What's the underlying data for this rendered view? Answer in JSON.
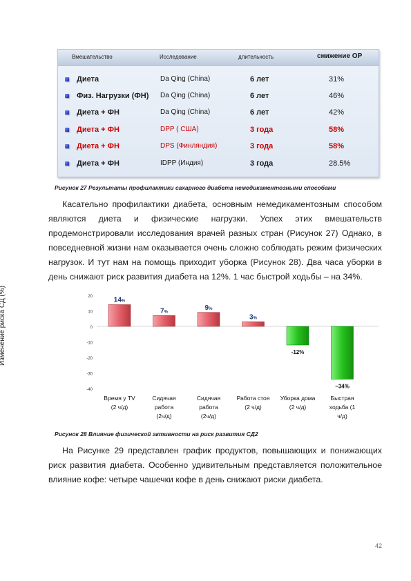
{
  "table": {
    "headers": [
      "Вмешательство",
      "Исследование",
      "длительность",
      "снижение ОР"
    ],
    "rows": [
      {
        "intervention": "Диета",
        "study": "Da Qing (China)",
        "duration": "6 лет",
        "reduction": "31%",
        "highlight": false
      },
      {
        "intervention": "Физ. Нагрузки (ФН)",
        "study": "Da Qing (China)",
        "duration": "6 лет",
        "reduction": "46%",
        "highlight": false
      },
      {
        "intervention": "Диета  + ФН",
        "study": "Da Qing (China)",
        "duration": "6 лет",
        "reduction": "42%",
        "highlight": false
      },
      {
        "intervention": "Диета  + ФН",
        "study": "DPP ( США)",
        "duration": "3 года",
        "reduction": "58%",
        "highlight": true
      },
      {
        "intervention": "Диета  + ФН",
        "study": "DPS  (Финляндия)",
        "duration": "3 года",
        "reduction": "58%",
        "highlight": true
      },
      {
        "intervention": "Диета  + ФН",
        "study": "IDPP (Индия)",
        "duration": "3 года",
        "reduction": "28.5%",
        "highlight": false
      }
    ],
    "colors": {
      "highlight": "#cc0000",
      "bullet": "#1c26a8"
    }
  },
  "caption27": "Рисунок 27 Результаты профилактики сахарного диабета немедикаментозными способами",
  "paragraph1": "Касательно профилактики диабета, основным немедикаментозным способом являются диета и физические нагрузки. Успех этих вмешательств продемонстрировали исследования врачей разных стран (Рисунок 27) Однако, в повседневной жизни нам оказывается очень сложно соблюдать режим физических нагрузок. И тут нам на помощь приходит уборка (Рисунок 28). Два часа уборки в день снижают риск развития диабета на 12%. 1 час быстрой ходьбы – на 34%.",
  "chart_data": {
    "type": "bar",
    "ylabel": "Изменение риска СД (%)",
    "ylim": [
      -40,
      20
    ],
    "yticks": [
      20,
      10,
      0,
      -10,
      -20,
      -30,
      -40
    ],
    "grid": false,
    "categories": [
      [
        "Время у TV",
        "(2 ч/д)"
      ],
      [
        "Сидячая",
        "работа",
        "(2ч/д)"
      ],
      [
        "Сидячая",
        "работа",
        "(2ч/д)"
      ],
      [
        "Работа стоя",
        "(2 ч/д)"
      ],
      [
        "Уборка дома",
        "(2 ч/д)"
      ],
      [
        "Быстрая",
        "ходьба (1",
        "ч/д)"
      ]
    ],
    "values": [
      14,
      7,
      9,
      3,
      -12,
      -34
    ],
    "data_labels": [
      {
        "num": "14",
        "unit": "%"
      },
      {
        "num": "7",
        "unit": "%"
      },
      {
        "num": "9",
        "unit": "%"
      },
      {
        "num": "3",
        "unit": "%"
      },
      {
        "num": "-12%",
        "unit": ""
      },
      {
        "num": "−34%",
        "unit": ""
      }
    ],
    "colors": {
      "positive": "#e4606a",
      "negative": "#25c21c",
      "label_positive": "#1f3c70"
    }
  },
  "caption28": "Рисунок 28 Влияние физической активности на риск развития СД2",
  "paragraph2": "На Рисунке 29 представлен график продуктов, повышающих и понижающих риск развития диабета. Особенно удивительным представляется положительное влияние кофе: четыре чашечки кофе в день снижают риски диабета.",
  "page_number": "42"
}
